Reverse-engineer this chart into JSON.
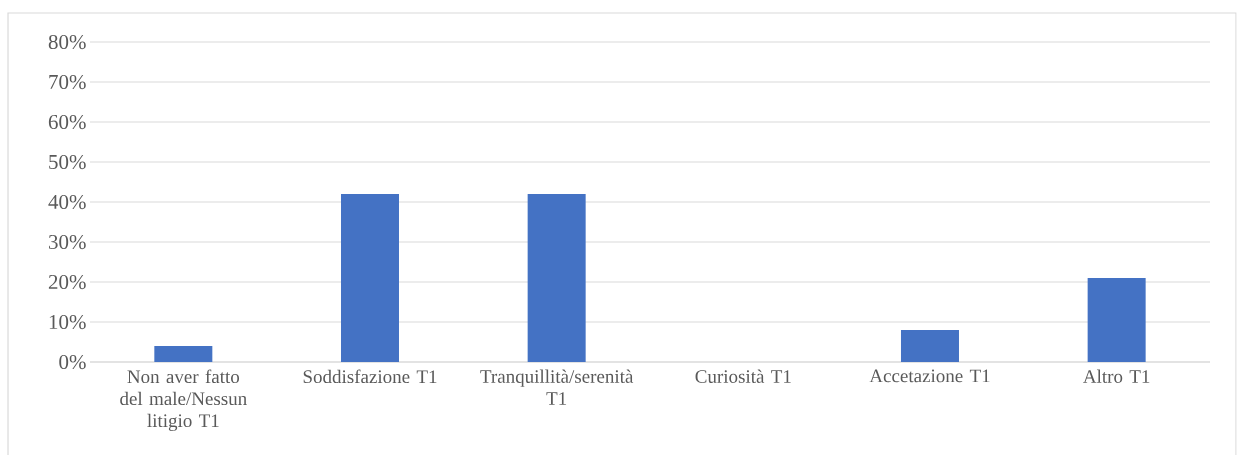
{
  "chart_data": {
    "type": "bar",
    "categories": [
      "Non aver fatto del male/Nessun litigio T1",
      "Soddisfazione T1",
      "Tranquillità/serenità T1",
      "Curiosità T1",
      "Accetazione T1",
      "Altro T1"
    ],
    "values": [
      4,
      42,
      42,
      0,
      8,
      21
    ],
    "color": "#4472c4",
    "ylim": [
      0,
      80
    ],
    "yticks": [
      {
        "value": 0,
        "label": "0%"
      },
      {
        "value": 10,
        "label": "10%"
      },
      {
        "value": 20,
        "label": "20%"
      },
      {
        "value": 30,
        "label": "30%"
      },
      {
        "value": 40,
        "label": "40%"
      },
      {
        "value": 50,
        "label": "50%"
      },
      {
        "value": 60,
        "label": "60%"
      },
      {
        "value": 70,
        "label": "70%"
      },
      {
        "value": 80,
        "label": "80%"
      }
    ],
    "grid": "y"
  }
}
